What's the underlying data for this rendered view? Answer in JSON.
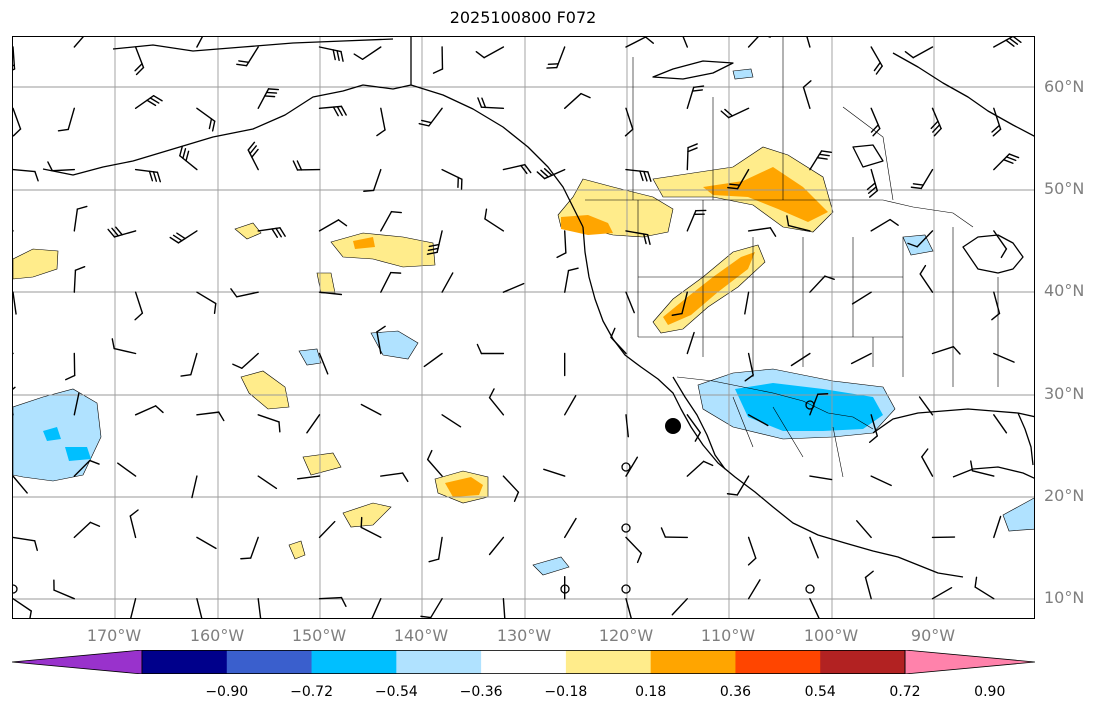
{
  "title": "2025100800 F072",
  "lat_labels": [
    {
      "lat": 60,
      "label": "60°N"
    },
    {
      "lat": 50,
      "label": "50°N"
    },
    {
      "lat": 40,
      "label": "40°N"
    },
    {
      "lat": 30,
      "label": "30°N"
    },
    {
      "lat": 20,
      "label": "20°N"
    },
    {
      "lat": 10,
      "label": "10°N"
    }
  ],
  "lon_labels": [
    {
      "lon": -170,
      "label": "170°W"
    },
    {
      "lon": -160,
      "label": "160°W"
    },
    {
      "lon": -150,
      "label": "150°W"
    },
    {
      "lon": -140,
      "label": "140°W"
    },
    {
      "lon": -130,
      "label": "130°W"
    },
    {
      "lon": -120,
      "label": "120°W"
    },
    {
      "lon": -110,
      "label": "110°W"
    },
    {
      "lon": -100,
      "label": "100°W"
    },
    {
      "lon": -90,
      "label": "90°W"
    }
  ],
  "colorbar": {
    "colors": [
      "#9932cc",
      "#00008b",
      "#3a5fcd",
      "#00bfff",
      "#b0e2ff",
      "#ffffff",
      "#ffec8b",
      "#ffa500",
      "#ff4500",
      "#b22222",
      "#ff82ab"
    ],
    "tick_labels": [
      "−0.90",
      "−0.72",
      "−0.54",
      "−0.36",
      "−0.18",
      "0.18",
      "0.36",
      "0.54",
      "0.72",
      "0.90"
    ]
  },
  "map": {
    "lon_range": [
      -180,
      -80
    ],
    "lat_range": [
      8,
      65
    ],
    "grid": true,
    "contour_colors": {
      "light_yellow": "#ffec8b",
      "orange": "#ffa500",
      "light_blue": "#b0e2ff",
      "deep_sky_blue": "#00bfff"
    }
  }
}
